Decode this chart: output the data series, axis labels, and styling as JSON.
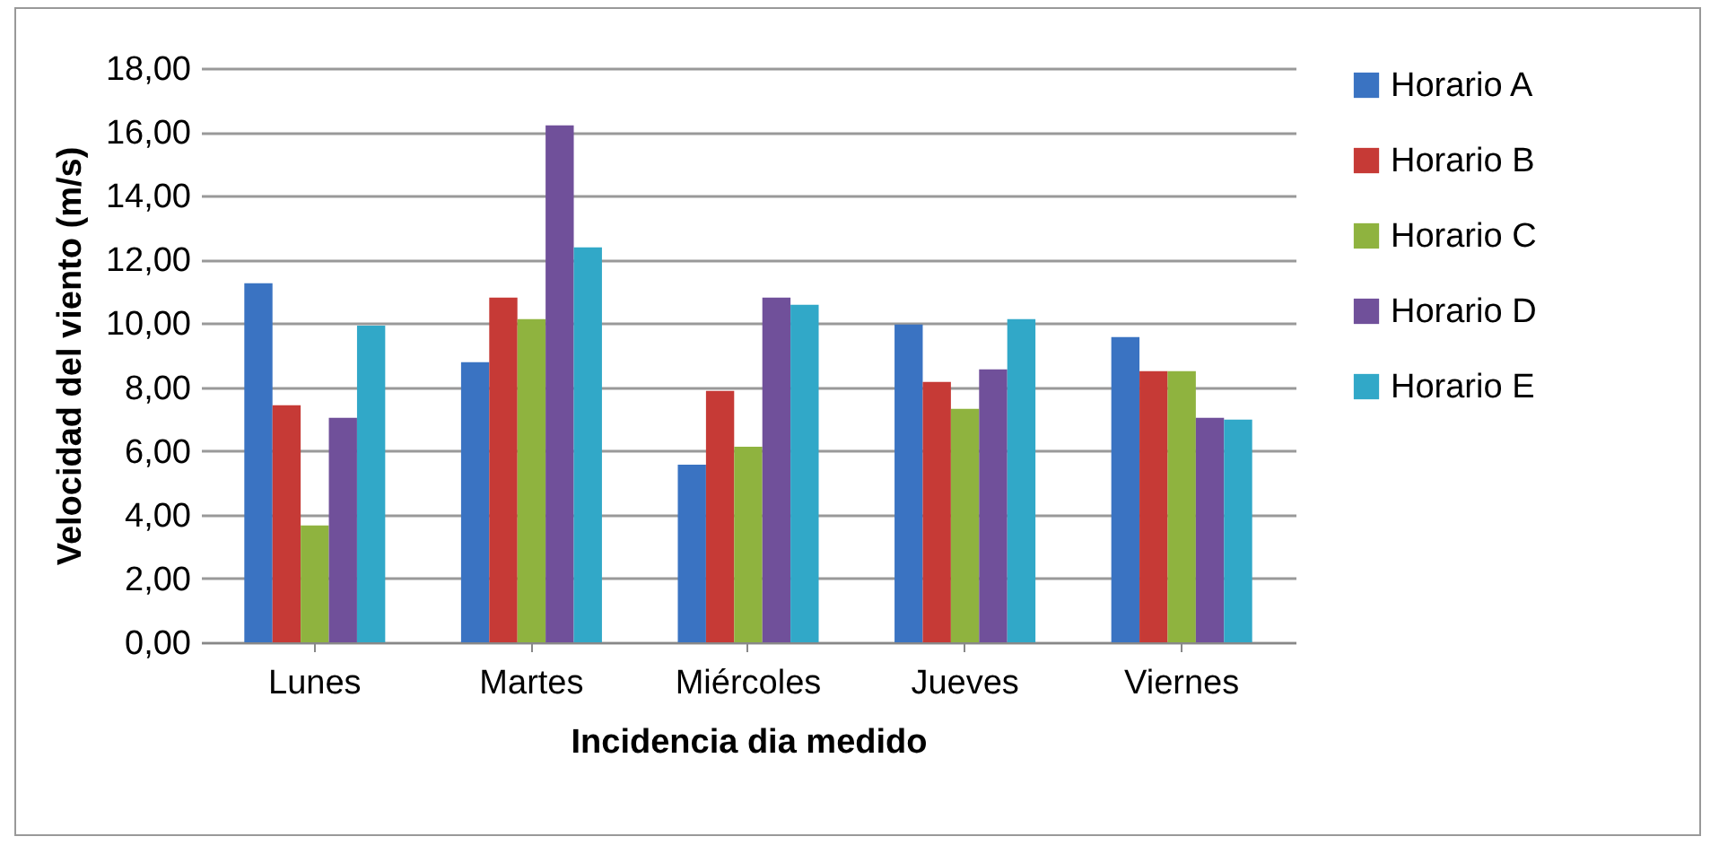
{
  "chart_data": {
    "type": "bar",
    "xlabel": "Incidencia dia medido",
    "ylabel": "Velocidad del viento (m/s)",
    "categories": [
      "Lunes",
      "Martes",
      "Miércoles",
      "Jueves",
      "Viernes"
    ],
    "series": [
      {
        "name": "Horario A",
        "color": "#3a73c2",
        "values": [
          11.26,
          8.78,
          5.57,
          9.96,
          9.57
        ]
      },
      {
        "name": "Horario B",
        "color": "#c63a36",
        "values": [
          7.43,
          10.81,
          7.88,
          8.16,
          8.5
        ]
      },
      {
        "name": "Horario C",
        "color": "#8fb33f",
        "values": [
          3.66,
          10.13,
          6.13,
          7.32,
          8.5
        ]
      },
      {
        "name": "Horario D",
        "color": "#70509a",
        "values": [
          7.04,
          16.21,
          10.81,
          8.56,
          7.04
        ]
      },
      {
        "name": "Horario E",
        "color": "#31a8c8",
        "values": [
          9.93,
          12.38,
          10.58,
          10.13,
          6.98
        ]
      }
    ],
    "ylim": [
      0,
      18
    ],
    "yticks": [
      {
        "value": 0,
        "label": "0,00"
      },
      {
        "value": 2,
        "label": "2,00"
      },
      {
        "value": 4,
        "label": "4,00"
      },
      {
        "value": 6,
        "label": "6,00"
      },
      {
        "value": 8,
        "label": "8,00"
      },
      {
        "value": 10,
        "label": "10,00"
      },
      {
        "value": 12,
        "label": "12,00"
      },
      {
        "value": 14,
        "label": "14,00"
      },
      {
        "value": 16,
        "label": "16,00"
      },
      {
        "value": 18,
        "label": "18,00"
      }
    ],
    "grid": "y",
    "legend": "right"
  }
}
